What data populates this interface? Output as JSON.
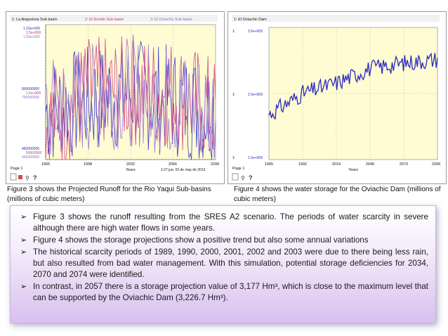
{
  "figure3": {
    "legend": [
      "1: La Angostura Sub basin",
      "2: El Novillo Sub basin",
      "3: El Oviachic Sub basin"
    ],
    "ylabels_top": [
      "1.15e+009",
      "2.5e+008",
      "1.05e+009"
    ],
    "ylabels_mid": [
      "800000000",
      "1.5e+008",
      "750000000"
    ],
    "ylabels_bot": [
      "450000000",
      "50000000",
      "450000000"
    ],
    "xticks": [
      "1965",
      "1998",
      "2032",
      "2066",
      "2099"
    ],
    "xlabel": "Years",
    "page_label": "Page 1",
    "timestamp": "1:27  jue, 02 de may de 2013",
    "colors": {
      "series1": "#3a3ec8",
      "series2": "#d24a8a",
      "series3": "#a07ad8"
    },
    "caption": "Figure 3 shows the Projected Runoff for the Rio Yaqui Sub-basins (millions of cubic meters)"
  },
  "figure4": {
    "legend": [
      "1: El Oviachic Dam"
    ],
    "ylabels": [
      "3.5e+009",
      "2.5e+009",
      "1.5e+009"
    ],
    "yprefix": [
      "1:",
      "1:",
      "1:"
    ],
    "xticks": [
      "1965",
      "1992",
      "2019",
      "2046",
      "2073",
      "2099"
    ],
    "xlabel": "Years",
    "page_label": "Page 1",
    "colors": {
      "series1": "#2a2ac0"
    },
    "caption": "Figure 4 shows the water storage for the Oviachic Dam (millions of cubic meters)"
  },
  "chart_data": [
    {
      "type": "line",
      "title": "",
      "xlabel": "Years",
      "ylabel": "",
      "x": [
        1965,
        1998,
        2032,
        2066,
        2099
      ],
      "series": [
        {
          "name": "La Angostura Sub basin",
          "values": [
            700000000,
            750000000,
            800000000,
            750000000,
            700000000
          ]
        },
        {
          "name": "El Novillo Sub basin",
          "values": [
            100000000,
            150000000,
            150000000,
            150000000,
            120000000
          ]
        },
        {
          "name": "El Oviachic Sub basin",
          "values": [
            650000000,
            720000000,
            760000000,
            700000000,
            680000000
          ]
        }
      ]
    },
    {
      "type": "line",
      "title": "",
      "xlabel": "Years",
      "ylabel": "",
      "ylim": [
        1500000000,
        3500000000
      ],
      "x": [
        1965,
        1992,
        2019,
        2046,
        2073,
        2099
      ],
      "series": [
        {
          "name": "El Oviachic Dam",
          "values": [
            2180000000,
            2500000000,
            2660000000,
            2880000000,
            2960000000,
            3020000000
          ]
        }
      ]
    }
  ],
  "bullets": [
    "Figure 3 shows the runoff resulting from the SRES A2 scenario. The periods of water scarcity in severe although there are high water flows in some years.",
    "Figure 4 shows the storage projections show a positive trend but also some annual variations",
    "The historical scarcity periods of 1989, 1990, 2000, 2001, 2002 and 2003 were due to there being less rain, but also resulted from bad water management.  With this simulation, potential storage deficiencies for 2034, 2070 and 2074 were identified.",
    "In contrast, in 2057 there is a storage projection value of 3,177 Hm³, which is close to the maximum level that can be supported by the Oviachic Dam (3,226.7 Hm³)."
  ],
  "bullet_symbol": "➢"
}
